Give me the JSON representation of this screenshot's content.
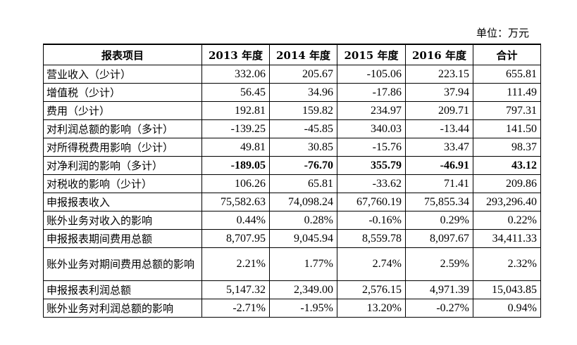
{
  "unit_label": "单位：万元",
  "headers": [
    "报表项目",
    "2013 年度",
    "2014 年度",
    "2015 年度",
    "2016 年度",
    "合计"
  ],
  "rows": [
    {
      "label": "营业收入（少计）",
      "values": [
        "332.06",
        "205.67",
        "-105.06",
        "223.15",
        "655.81"
      ]
    },
    {
      "label": "增值税（少计）",
      "values": [
        "56.45",
        "34.96",
        "-17.86",
        "37.94",
        "111.49"
      ]
    },
    {
      "label": "费用（少计）",
      "values": [
        "192.81",
        "159.82",
        "234.97",
        "209.71",
        "797.31"
      ]
    },
    {
      "label": "对利润总额的影响（多计）",
      "values": [
        "-139.25",
        "-45.85",
        "340.03",
        "-13.44",
        "141.50"
      ]
    },
    {
      "label": "对所得税费用影响（少计）",
      "values": [
        "49.81",
        "30.85",
        "-15.76",
        "33.47",
        "98.37"
      ]
    },
    {
      "label": "对净利润的影响（多计）",
      "values": [
        "-189.05",
        "-76.70",
        "355.79",
        "-46.91",
        "43.12"
      ]
    },
    {
      "label": "对税收的影响（少计）",
      "values": [
        "106.26",
        "65.81",
        "-33.62",
        "71.41",
        "209.86"
      ]
    },
    {
      "label": "申报报表收入",
      "values": [
        "75,582.63",
        "74,098.24",
        "67,760.19",
        "75,855.34",
        "293,296.40"
      ]
    },
    {
      "label": "账外业务对收入的影响",
      "values": [
        "0.44%",
        "0.28%",
        "-0.16%",
        "0.29%",
        "0.22%"
      ]
    },
    {
      "label": "申报报表期间费用总额",
      "values": [
        "8,707.95",
        "9,045.94",
        "8,559.78",
        "8,097.67",
        "34,411.33"
      ]
    },
    {
      "label": "账外业务对期间费用总额的影响",
      "values": [
        "2.21%",
        "1.77%",
        "2.74%",
        "2.59%",
        "2.32%"
      ]
    },
    {
      "label": "申报报表利润总额",
      "values": [
        "5,147.32",
        "2,349.00",
        "2,576.15",
        "4,971.39",
        "15,043.85"
      ]
    },
    {
      "label": "账外业务对利润总额的影响",
      "values": [
        "-2.71%",
        "-1.95%",
        "13.20%",
        "-0.27%",
        "0.94%"
      ]
    }
  ]
}
